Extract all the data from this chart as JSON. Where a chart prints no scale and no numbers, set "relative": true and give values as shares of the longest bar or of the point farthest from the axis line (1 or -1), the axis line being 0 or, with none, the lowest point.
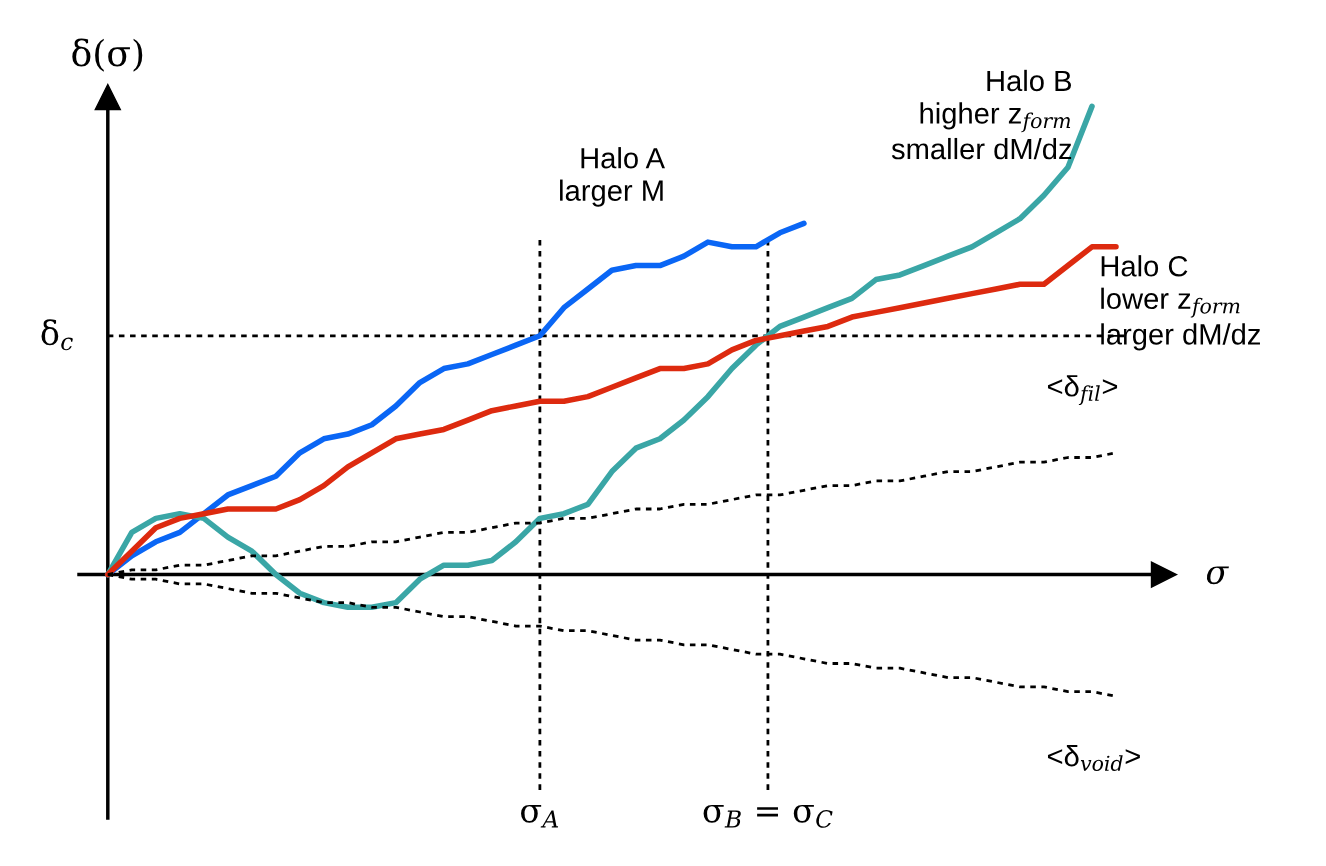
{
  "chart_data": {
    "type": "line",
    "relative": true,
    "xlabel": "σ",
    "ylabel": "δ(σ)",
    "categories": [
      null,
      null,
      null,
      null,
      null,
      null,
      null,
      null,
      null,
      null,
      null,
      null,
      null,
      null,
      null,
      null,
      null,
      null,
      null,
      null,
      null,
      null,
      null,
      null,
      null,
      null,
      null,
      null,
      null,
      null,
      null,
      null,
      null,
      null,
      null,
      null,
      null,
      null,
      null,
      null,
      null,
      null,
      null
    ],
    "series": [
      {
        "name": "Halo A\nlarger M",
        "color": "#0a66f5",
        "values": [
          0,
          0.04,
          0.07,
          0.09,
          0.13,
          0.17,
          0.19,
          0.21,
          0.26,
          0.29,
          0.3,
          0.32,
          0.36,
          0.41,
          0.44,
          0.45,
          0.47,
          0.49,
          0.51,
          0.57,
          0.61,
          0.65,
          0.66,
          0.66,
          0.68,
          0.71,
          0.7,
          0.7,
          0.73,
          0.75,
          null,
          null,
          null,
          null,
          null,
          null,
          null,
          null,
          null,
          null,
          null,
          null,
          null
        ]
      },
      {
        "name": "Halo B\nhigher z$_{form}$\nsmaller dM/dz",
        "color": "#3aa6a6",
        "values": [
          0,
          0.09,
          0.12,
          0.13,
          0.12,
          0.08,
          0.05,
          0,
          -0.04,
          -0.06,
          -0.07,
          -0.07,
          -0.06,
          -0.01,
          0.02,
          0.02,
          0.03,
          0.07,
          0.12,
          0.13,
          0.15,
          0.22,
          0.27,
          0.29,
          0.33,
          0.38,
          0.44,
          0.49,
          0.53,
          0.55,
          0.57,
          0.59,
          0.63,
          0.64,
          0.66,
          0.68,
          0.7,
          0.73,
          0.76,
          0.81,
          0.87,
          1.0,
          null
        ]
      },
      {
        "name": "Halo C\nlower z$_{form}$\nlarger dM/dz",
        "color": "#dd2a0f",
        "values": [
          0,
          0.05,
          0.1,
          0.12,
          0.13,
          0.14,
          0.14,
          0.14,
          0.16,
          0.19,
          0.23,
          0.26,
          0.29,
          0.3,
          0.31,
          0.33,
          0.35,
          0.36,
          0.37,
          0.37,
          0.38,
          0.4,
          0.42,
          0.44,
          0.44,
          0.45,
          0.48,
          0.5,
          0.51,
          0.52,
          0.53,
          0.55,
          0.56,
          0.57,
          0.58,
          0.59,
          0.6,
          0.61,
          0.62,
          0.62,
          0.66,
          0.7,
          0.7
        ]
      },
      {
        "name": "<δ$_{fil}$>",
        "color": "#000000",
        "line_style": "dotted",
        "values": [
          0,
          0.01,
          0.01,
          0.02,
          0.02,
          0.03,
          0.04,
          0.04,
          0.05,
          0.06,
          0.06,
          0.07,
          0.07,
          0.08,
          0.09,
          0.09,
          0.1,
          0.11,
          0.11,
          0.12,
          0.12,
          0.13,
          0.14,
          0.14,
          0.15,
          0.15,
          0.16,
          0.17,
          0.17,
          0.18,
          0.19,
          0.19,
          0.2,
          0.2,
          0.21,
          0.22,
          0.22,
          0.23,
          0.24,
          0.24,
          0.25,
          0.25,
          0.26
        ]
      },
      {
        "name": "<δ$_{void}$>",
        "color": "#000000",
        "line_style": "dotted",
        "values": [
          0,
          -0.01,
          -0.01,
          -0.02,
          -0.02,
          -0.03,
          -0.04,
          -0.04,
          -0.05,
          -0.06,
          -0.06,
          -0.07,
          -0.07,
          -0.08,
          -0.09,
          -0.09,
          -0.1,
          -0.11,
          -0.11,
          -0.12,
          -0.12,
          -0.13,
          -0.14,
          -0.14,
          -0.15,
          -0.15,
          -0.16,
          -0.17,
          -0.17,
          -0.18,
          -0.19,
          -0.19,
          -0.2,
          -0.2,
          -0.21,
          -0.22,
          -0.22,
          -0.23,
          -0.24,
          -0.24,
          -0.25,
          -0.25,
          -0.26
        ]
      }
    ],
    "ref_lines": [
      {
        "axis": "y",
        "value": 0.51,
        "label": "δ$_{c}$",
        "color": "#000000",
        "line_style": "dotted"
      }
    ],
    "annotations": [
      "σ$_{A}$",
      "σ$_{B}$ = σ$_{C}$"
    ],
    "line_style": "solid",
    "legend": false
  }
}
